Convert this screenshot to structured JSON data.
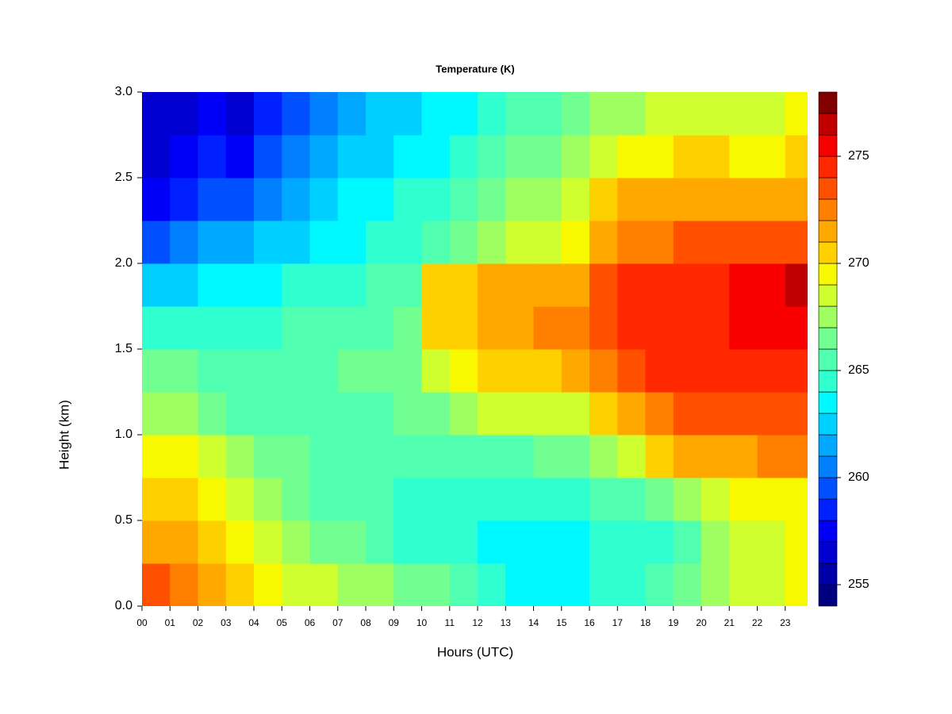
{
  "chart_data": {
    "type": "heatmap",
    "title": "Temperature (K)",
    "x_label": "Hours (UTC)",
    "y_label": "Height (km)",
    "x": [
      0,
      1,
      2,
      3,
      4,
      5,
      6,
      7,
      8,
      9,
      10,
      11,
      12,
      13,
      14,
      15,
      16,
      17,
      18,
      19,
      20,
      21,
      22,
      23
    ],
    "y": [
      0.125,
      0.375,
      0.625,
      0.875,
      1.125,
      1.375,
      1.625,
      1.875,
      2.125,
      2.375,
      2.625,
      2.875
    ],
    "z": [
      [
        273,
        272,
        271,
        270,
        269,
        268,
        268,
        267,
        267,
        266,
        266,
        265,
        264,
        263,
        263,
        263,
        264,
        264,
        265,
        266,
        267,
        268,
        268,
        269
      ],
      [
        271,
        271,
        270,
        269,
        268,
        267,
        266,
        266,
        265,
        264,
        264,
        264,
        263,
        263,
        263,
        263,
        264,
        264,
        264,
        265,
        267,
        268,
        268,
        269
      ],
      [
        270,
        270,
        269,
        268,
        267,
        266,
        265,
        265,
        265,
        264,
        264,
        264,
        264,
        264,
        264,
        264,
        265,
        265,
        266,
        267,
        268,
        269,
        269,
        269
      ],
      [
        269,
        269,
        268,
        267,
        266,
        266,
        265,
        265,
        265,
        265,
        265,
        265,
        265,
        265,
        266,
        266,
        267,
        268,
        270,
        271,
        271,
        271,
        272,
        272
      ],
      [
        267,
        267,
        266,
        265,
        265,
        265,
        265,
        265,
        265,
        266,
        266,
        267,
        268,
        268,
        268,
        268,
        270,
        271,
        272,
        273,
        273,
        273,
        273,
        273
      ],
      [
        266,
        266,
        265,
        265,
        265,
        265,
        265,
        266,
        266,
        266,
        268,
        269,
        270,
        270,
        270,
        271,
        272,
        273,
        274,
        274,
        274,
        274,
        274,
        274
      ],
      [
        264,
        264,
        264,
        264,
        264,
        265,
        265,
        265,
        265,
        266,
        270,
        270,
        271,
        271,
        272,
        272,
        273,
        274,
        274,
        274,
        274,
        275,
        275,
        275
      ],
      [
        262,
        262,
        263,
        263,
        263,
        264,
        264,
        264,
        265,
        265,
        270,
        270,
        271,
        271,
        271,
        271,
        273,
        274,
        274,
        274,
        274,
        275,
        275,
        276
      ],
      [
        259,
        260,
        261,
        261,
        262,
        262,
        263,
        263,
        264,
        264,
        265,
        266,
        267,
        268,
        268,
        269,
        271,
        272,
        272,
        273,
        273,
        273,
        273,
        273
      ],
      [
        257,
        258,
        259,
        259,
        260,
        261,
        262,
        263,
        263,
        264,
        264,
        265,
        266,
        267,
        267,
        268,
        270,
        271,
        271,
        271,
        271,
        271,
        271,
        271
      ],
      [
        256,
        257,
        258,
        257,
        259,
        260,
        261,
        262,
        262,
        263,
        263,
        264,
        265,
        266,
        266,
        267,
        268,
        269,
        269,
        270,
        270,
        269,
        269,
        270
      ],
      [
        256,
        256,
        257,
        256,
        258,
        259,
        260,
        261,
        262,
        262,
        263,
        263,
        264,
        265,
        265,
        266,
        267,
        267,
        268,
        268,
        268,
        268,
        268,
        269
      ]
    ],
    "xlim": [
      0,
      23.8
    ],
    "ylim": [
      0,
      3
    ],
    "xticks": [
      {
        "value": 0,
        "label": "00"
      },
      {
        "value": 1,
        "label": "01"
      },
      {
        "value": 2,
        "label": "02"
      },
      {
        "value": 3,
        "label": "03"
      },
      {
        "value": 4,
        "label": "04"
      },
      {
        "value": 5,
        "label": "05"
      },
      {
        "value": 6,
        "label": "06"
      },
      {
        "value": 7,
        "label": "07"
      },
      {
        "value": 8,
        "label": "08"
      },
      {
        "value": 9,
        "label": "09"
      },
      {
        "value": 10,
        "label": "10"
      },
      {
        "value": 11,
        "label": "11"
      },
      {
        "value": 12,
        "label": "12"
      },
      {
        "value": 13,
        "label": "13"
      },
      {
        "value": 14,
        "label": "14"
      },
      {
        "value": 15,
        "label": "15"
      },
      {
        "value": 16,
        "label": "16"
      },
      {
        "value": 17,
        "label": "17"
      },
      {
        "value": 18,
        "label": "18"
      },
      {
        "value": 19,
        "label": "19"
      },
      {
        "value": 20,
        "label": "20"
      },
      {
        "value": 21,
        "label": "21"
      },
      {
        "value": 22,
        "label": "22"
      },
      {
        "value": 23,
        "label": "23"
      }
    ],
    "yticks": [
      {
        "value": 0,
        "label": "0.0"
      },
      {
        "value": 0.5,
        "label": "0.5"
      },
      {
        "value": 1,
        "label": "1.0"
      },
      {
        "value": 1.5,
        "label": "1.5"
      },
      {
        "value": 2,
        "label": "2.0"
      },
      {
        "value": 2.5,
        "label": "2.5"
      },
      {
        "value": 3,
        "label": "3.0"
      }
    ],
    "zlim": [
      254,
      278
    ],
    "zticks": [
      255,
      260,
      265,
      270,
      275
    ],
    "colors": [
      "#000080",
      "#0000A8",
      "#0000D0",
      "#0000F8",
      "#0020FF",
      "#0050FF",
      "#0080FF",
      "#00A8FF",
      "#00D0FF",
      "#00F8FF",
      "#30FFD0",
      "#50FFB0",
      "#70FF90",
      "#A0FF60",
      "#D0FF30",
      "#F8F800",
      "#FFD000",
      "#FFA800",
      "#FF8000",
      "#FF5000",
      "#FF2800",
      "#F80000",
      "#C00000",
      "#800000"
    ]
  }
}
